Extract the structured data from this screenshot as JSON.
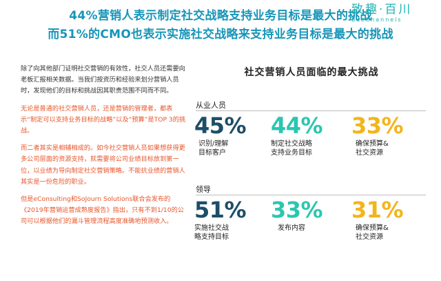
{
  "header": {
    "title_line1": "44%营销人表示制定社交战略支持业务目标是最大的挑战",
    "title_line2": "而51%的CMO也表示实施社交战略来支持业务目标是最大的挑战"
  },
  "logo": {
    "name_cn": "致趣·百川",
    "name_en": "BesChannels"
  },
  "body_paragraphs": [
    "除了向其他部门证明社交营销的有效性，社交人员还需要向老板汇报相关数据。当我们按资历和经验来划分营销人员时，发现他们的目标和挑战因其职责范围不同而不同。",
    "无论是普通的社交营销人员，还是营销的管理者，都表示“制定可以支持业务目标的战略”以及“预算”是TOP 3的挑战。",
    "而二者其实是相辅相成的。如今社交营销人员如果想获得更多公司层面的资源支持，就需要将公司业绩目标放到第一位，以业绩为导向制定社交营销策略。不能抗业绩的营销人其实是一份危险的职业。",
    "但是eConsulting和SoJourn  Solutions联合会发布的《2019年营销运营成熟度报告》指出，只有不到1/10的公司可以根据他们的漏斗管理流程高度准确地预测收入。"
  ],
  "chart": {
    "title": "社交营销人员面临的最大挑战",
    "groups": [
      {
        "label": "从业人员",
        "stats": [
          {
            "value": "45%",
            "label_line1": "识别/理解",
            "label_line2": "目标客户",
            "color": "#1c4e68"
          },
          {
            "value": "44%",
            "label_line1": "制定社交战略",
            "label_line2": "支持业务目标",
            "color": "#2bc6b0"
          },
          {
            "value": "33%",
            "label_line1": "确保预算&",
            "label_line2": "社交资源",
            "color": "#f2b51a"
          }
        ]
      },
      {
        "label": "领导",
        "stats": [
          {
            "value": "51%",
            "label_line1": "实施社交战",
            "label_line2": "略支持目标",
            "color": "#1c4e68"
          },
          {
            "value": "33%",
            "label_line1": "发布内容",
            "label_line2": "",
            "color": "#2bc6b0"
          },
          {
            "value": "31%",
            "label_line1": "确保预算&",
            "label_line2": "社交资源",
            "color": "#f2b51a"
          }
        ]
      }
    ]
  }
}
